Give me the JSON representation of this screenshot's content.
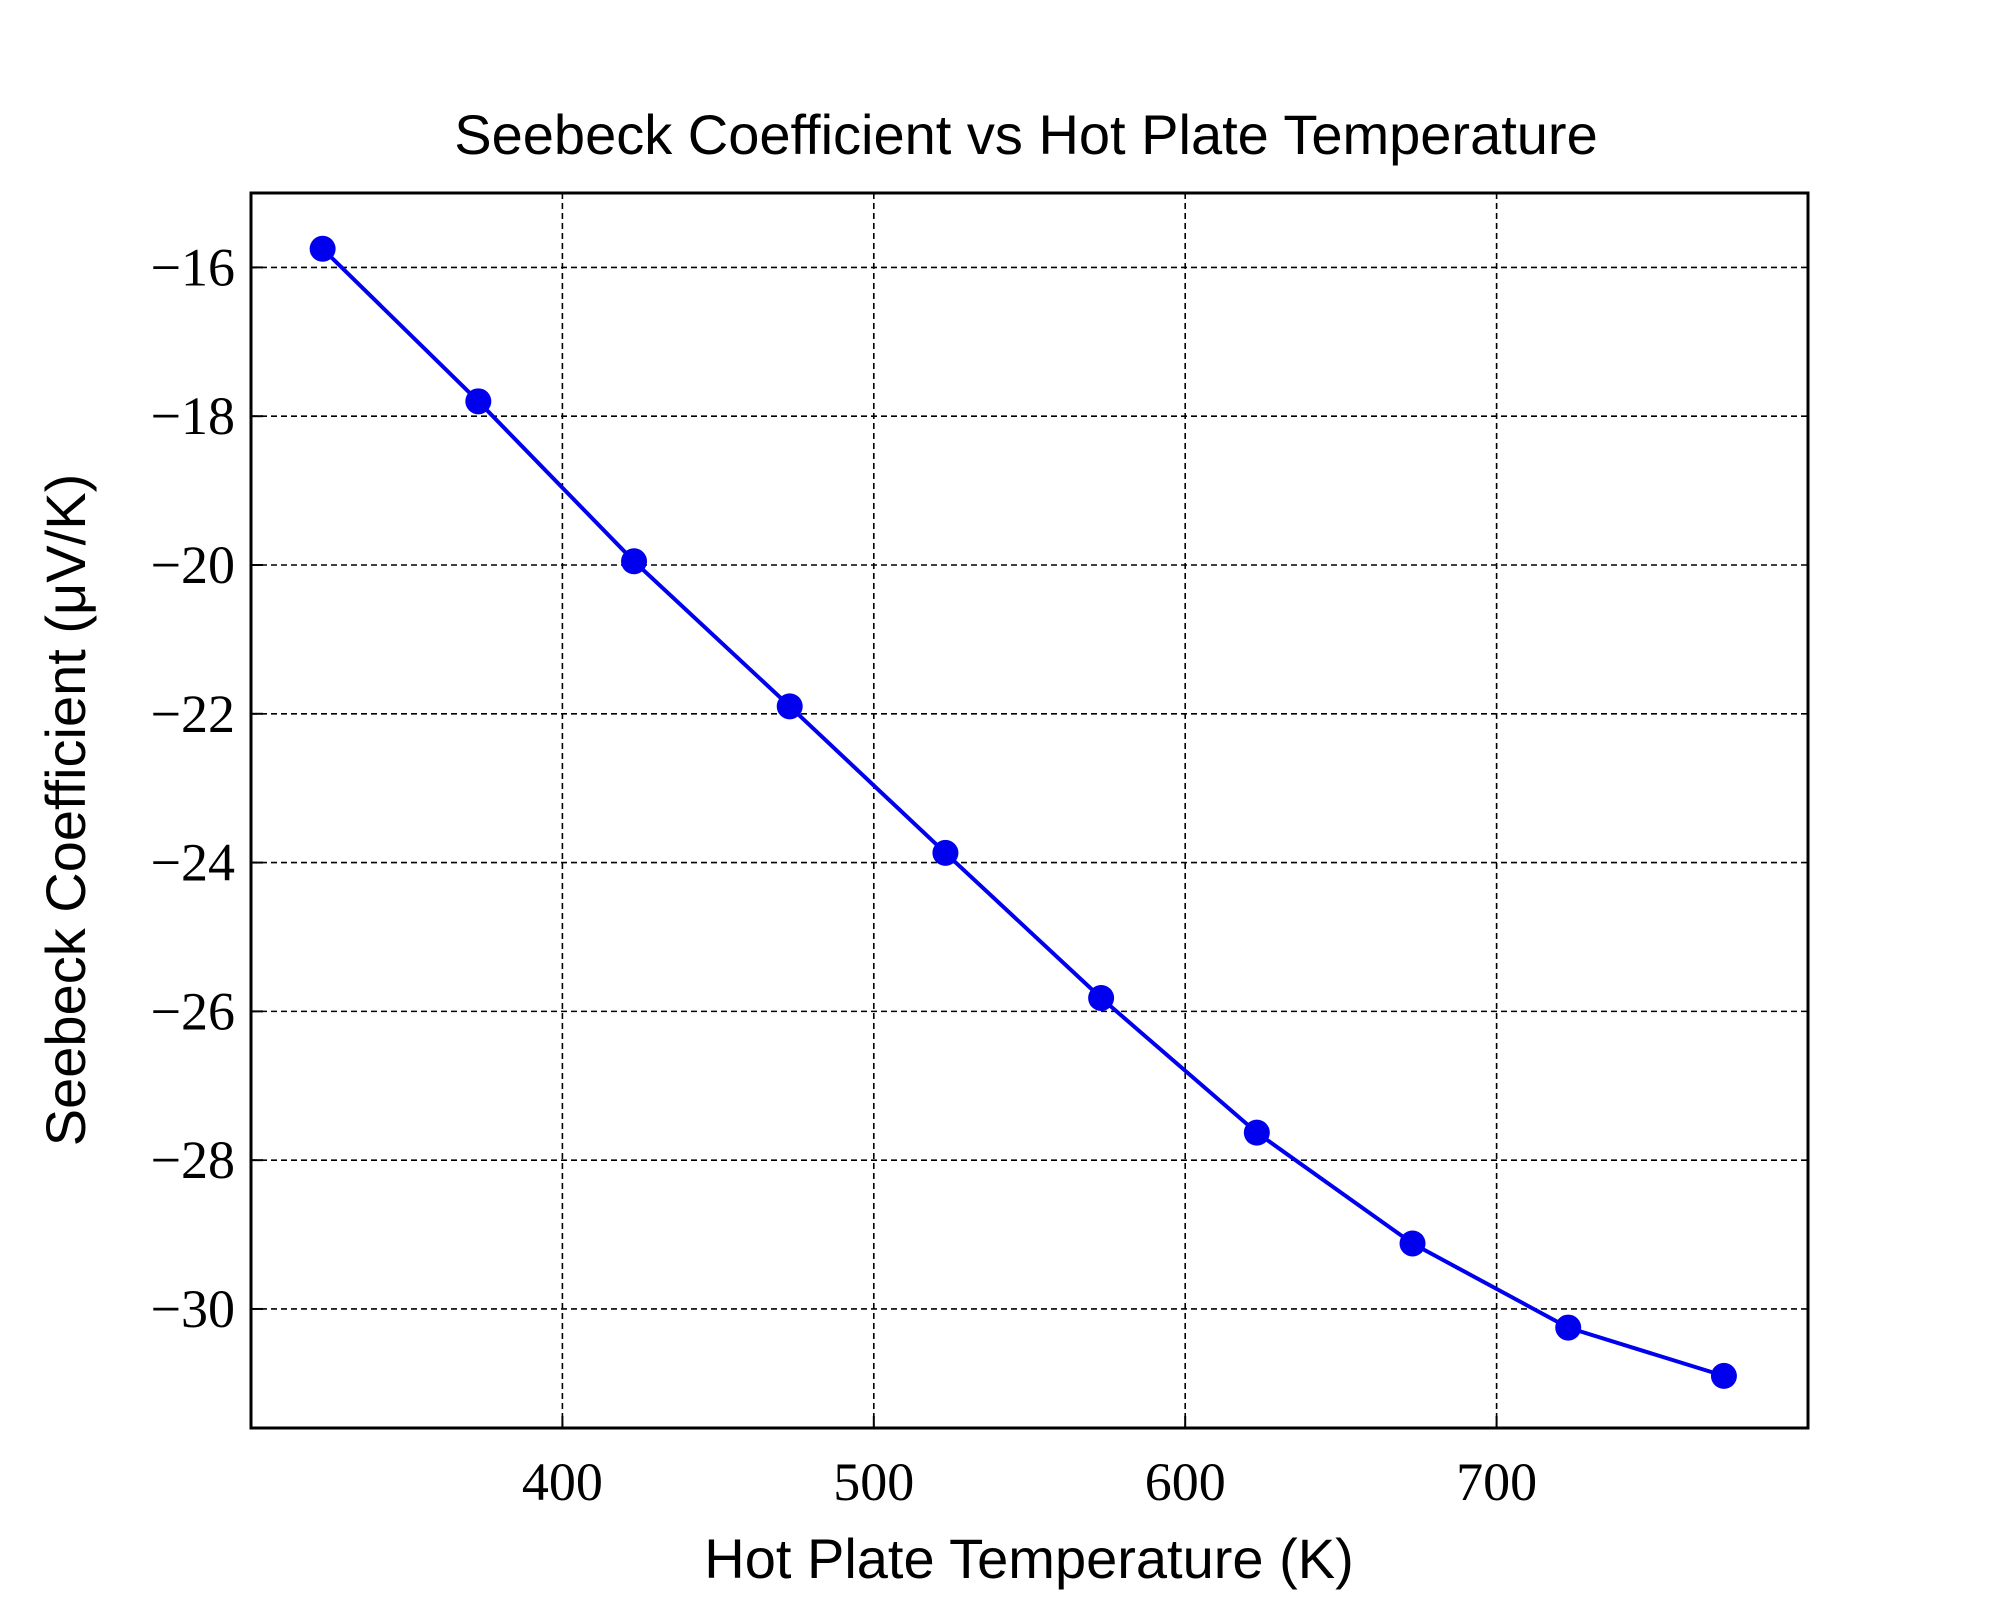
{
  "chart_data": {
    "type": "line",
    "title": "Seebeck Coefficient vs Hot Plate Temperature",
    "xlabel": "Hot Plate Temperature (K)",
    "ylabel": "Seebeck Coefficient (μV/K)",
    "xlim": [
      300,
      800
    ],
    "ylim": [
      -31.6,
      -15.0
    ],
    "x_ticks": [
      400,
      500,
      600,
      700
    ],
    "y_ticks": [
      -16,
      -18,
      -20,
      -22,
      -24,
      -26,
      -28,
      -30
    ],
    "x_tick_labels": [
      "400",
      "500",
      "600",
      "700"
    ],
    "y_tick_labels": [
      "−16",
      "−18",
      "−20",
      "−22",
      "−24",
      "−26",
      "−28",
      "−30"
    ],
    "grid": true,
    "grid_style": "dashed",
    "series": [
      {
        "color": "#0000ee",
        "marker": "circle",
        "x": [
          323,
          373,
          423,
          473,
          523,
          573,
          623,
          673,
          723,
          773
        ],
        "y": [
          -15.75,
          -17.8,
          -19.95,
          -21.9,
          -23.87,
          -25.82,
          -27.63,
          -29.12,
          -30.25,
          -30.9
        ]
      }
    ]
  }
}
